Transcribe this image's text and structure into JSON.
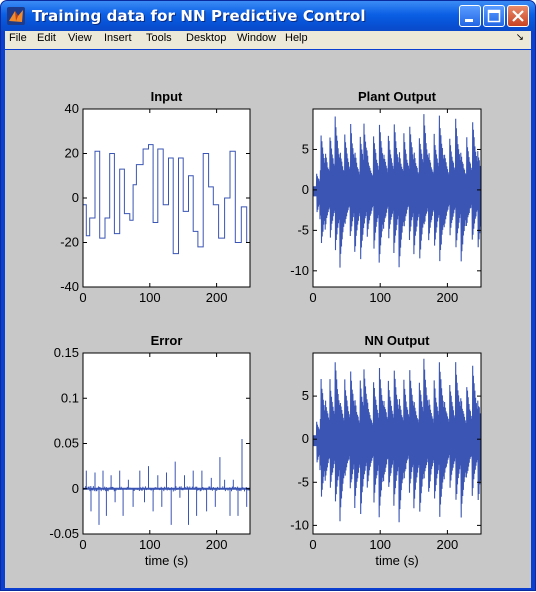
{
  "window": {
    "title": "Training data for NN Predictive Control",
    "controls": {
      "minimize": "minimize",
      "maximize": "maximize",
      "close": "close"
    }
  },
  "menu": {
    "items": [
      "File",
      "Edit",
      "View",
      "Insert",
      "Tools",
      "Desktop",
      "Window",
      "Help"
    ],
    "dock_icon": "dock-arrow-icon"
  },
  "colors": {
    "plot_line": "#3a55b4",
    "figure_bg": "#c8c8c8",
    "axes_bg": "#ffffff"
  },
  "chart_data": [
    {
      "type": "line",
      "title": "Input",
      "xlabel": "",
      "ylabel": "",
      "xlim": [
        0,
        250
      ],
      "ylim": [
        -40,
        40
      ],
      "xticks": [
        0,
        100,
        200
      ],
      "yticks": [
        -40,
        -20,
        0,
        20,
        40
      ],
      "series": [
        {
          "style": "step",
          "x": [
            0,
            5,
            10,
            18,
            25,
            33,
            40,
            47,
            55,
            62,
            70,
            75,
            80,
            90,
            98,
            105,
            112,
            120,
            128,
            135,
            143,
            150,
            158,
            165,
            172,
            180,
            188,
            195,
            203,
            212,
            220,
            228,
            237,
            245,
            250
          ],
          "y": [
            -3,
            -17,
            -9,
            21,
            -18,
            -9,
            20,
            -16,
            13,
            -7,
            -10,
            6,
            15,
            22,
            24,
            -11,
            22,
            -3,
            18,
            -25,
            18,
            -6,
            10,
            -15,
            -22,
            20,
            5,
            -3,
            -18,
            0,
            21,
            -20,
            -4,
            -20,
            -20
          ]
        }
      ]
    },
    {
      "type": "line",
      "title": "Plant Output",
      "xlabel": "",
      "ylabel": "",
      "xlim": [
        0,
        250
      ],
      "ylim": [
        -12,
        10
      ],
      "xticks": [
        0,
        100,
        200
      ],
      "yticks": [
        -10,
        -5,
        0,
        5
      ],
      "series": [
        {
          "style": "oscillation",
          "shape": "plant"
        }
      ]
    },
    {
      "type": "line",
      "title": "Error",
      "xlabel": "time (s)",
      "ylabel": "",
      "xlim": [
        0,
        250
      ],
      "ylim": [
        -0.05,
        0.15
      ],
      "xticks": [
        0,
        100,
        200
      ],
      "yticks": [
        -0.05,
        0,
        0.05,
        0.1,
        0.15
      ],
      "ytick_labels": [
        "-0.05",
        "0",
        "0.05",
        "0.1",
        "0.15"
      ],
      "series": [
        {
          "style": "spikes",
          "x": [
            5,
            12,
            18,
            24,
            30,
            35,
            42,
            48,
            55,
            60,
            68,
            75,
            85,
            92,
            98,
            105,
            112,
            118,
            125,
            132,
            138,
            145,
            152,
            158,
            165,
            170,
            178,
            185,
            192,
            198,
            205,
            212,
            220,
            225,
            232,
            238,
            245
          ],
          "y": [
            0.02,
            -0.025,
            0.018,
            -0.04,
            0.02,
            -0.03,
            0.015,
            -0.015,
            0.02,
            -0.03,
            0.01,
            -0.02,
            0.02,
            -0.015,
            0.025,
            -0.025,
            0.015,
            -0.02,
            0.018,
            -0.04,
            0.03,
            -0.01,
            0.015,
            -0.04,
            0.02,
            -0.03,
            0.02,
            -0.025,
            0.012,
            -0.02,
            0.035,
            0.01,
            -0.03,
            0.01,
            -0.03,
            0.055,
            -0.02
          ]
        }
      ]
    },
    {
      "type": "line",
      "title": "NN Output",
      "xlabel": "time (s)",
      "ylabel": "",
      "xlim": [
        0,
        250
      ],
      "ylim": [
        -11,
        10
      ],
      "xticks": [
        0,
        100,
        200
      ],
      "yticks": [
        -10,
        -5,
        0,
        5
      ],
      "series": [
        {
          "style": "oscillation",
          "shape": "nn"
        }
      ]
    }
  ]
}
